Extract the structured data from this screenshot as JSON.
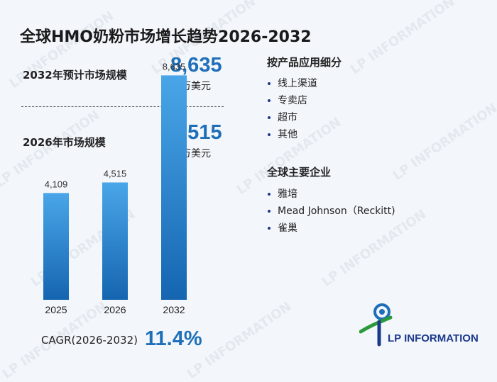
{
  "title": "全球HMO奶粉市场增长趋势2026-2032",
  "stats": [
    {
      "label": "2032年预计市场规模",
      "value": "8,635",
      "unit": "百万美元"
    },
    {
      "label": "2026年市场规模",
      "value": "4,515",
      "unit": "百万美元"
    }
  ],
  "segments": {
    "title": "按产品应用细分",
    "items": [
      "线上渠道",
      "专卖店",
      "超市",
      "其他"
    ]
  },
  "companies": {
    "title": "全球主要企业",
    "items": [
      "雅培",
      "Mead Johnson（Reckitt)",
      "雀巢"
    ]
  },
  "cagr": {
    "label": "CAGR(2026-2032)",
    "value": "11.4%"
  },
  "logo": {
    "text": "LP INFORMATION"
  },
  "watermark": "LP INFORMATION",
  "colors": {
    "accent": "#1e6fb8",
    "bar_top": "#4aa6e8",
    "bar_bottom": "#1565b0"
  },
  "chart_data": {
    "type": "bar",
    "categories": [
      "2025",
      "2026",
      "2032"
    ],
    "values": [
      4109,
      4515,
      8635
    ],
    "value_labels": [
      "4,109",
      "4,515",
      "8,635"
    ],
    "ylim": [
      0,
      9000
    ],
    "grid": false
  }
}
